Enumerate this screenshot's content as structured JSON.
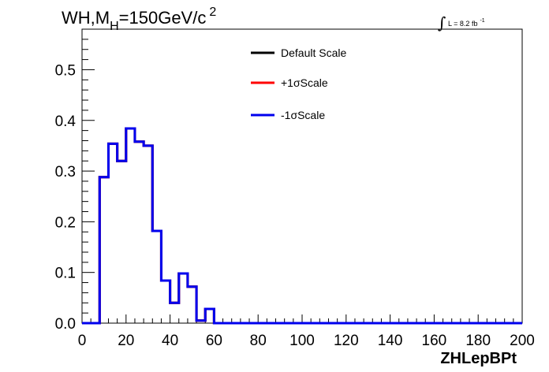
{
  "chart_data": {
    "type": "line",
    "title": {
      "prefix": "WH,M",
      "subscript": "H",
      "middle": "=150GeV/c",
      "superscript": "2"
    },
    "lumi": {
      "integral": "∫",
      "text": "L = 8.2 fb",
      "exponent": "-1"
    },
    "xlabel": "ZHLepBPt",
    "ylabel": "",
    "xlim": [
      0,
      200
    ],
    "ylim": [
      0,
      0.58
    ],
    "x_ticks": [
      0,
      20,
      40,
      60,
      80,
      100,
      120,
      140,
      160,
      180,
      200
    ],
    "x_tick_labels": [
      "0",
      "20",
      "40",
      "60",
      "80",
      "100",
      "120",
      "140",
      "160",
      "180",
      "200"
    ],
    "y_ticks": [
      0,
      0.1,
      0.2,
      0.3,
      0.4,
      0.5
    ],
    "y_tick_labels": [
      "0.0",
      "0.1",
      "0.2",
      "0.3",
      "0.4",
      "0.5"
    ],
    "bin_width": 4,
    "bin_edges_start": 0,
    "legend_position": "top-right",
    "series": [
      {
        "name": "Default Scale",
        "color": "#000000",
        "values": [
          0,
          0,
          0.288,
          0.354,
          0.32,
          0.384,
          0.358,
          0.35,
          0.182,
          0.084,
          0.04,
          0.098,
          0.072,
          0.005,
          0.028,
          0,
          0,
          0,
          0,
          0,
          0,
          0,
          0,
          0,
          0,
          0,
          0,
          0,
          0,
          0,
          0,
          0,
          0,
          0,
          0,
          0,
          0,
          0,
          0,
          0,
          0,
          0,
          0,
          0,
          0,
          0,
          0,
          0,
          0,
          0
        ]
      },
      {
        "name": "+1σScale",
        "color": "#ff0000",
        "values": [
          0,
          0,
          0.288,
          0.354,
          0.32,
          0.384,
          0.358,
          0.35,
          0.182,
          0.084,
          0.04,
          0.098,
          0.072,
          0.005,
          0.028,
          0,
          0,
          0,
          0,
          0,
          0,
          0,
          0,
          0,
          0,
          0,
          0,
          0,
          0,
          0,
          0,
          0,
          0,
          0,
          0,
          0,
          0,
          0,
          0,
          0,
          0,
          0,
          0,
          0,
          0,
          0,
          0,
          0,
          0,
          0
        ]
      },
      {
        "name": "-1σScale",
        "color": "#0000ee",
        "values": [
          0,
          0,
          0.288,
          0.354,
          0.32,
          0.384,
          0.358,
          0.35,
          0.182,
          0.084,
          0.04,
          0.098,
          0.072,
          0.005,
          0.028,
          0,
          0,
          0,
          0,
          0,
          0,
          0,
          0,
          0,
          0,
          0,
          0,
          0,
          0,
          0,
          0,
          0,
          0,
          0,
          0,
          0,
          0,
          0,
          0,
          0,
          0,
          0,
          0,
          0,
          0,
          0,
          0,
          0,
          0,
          0
        ]
      }
    ]
  }
}
